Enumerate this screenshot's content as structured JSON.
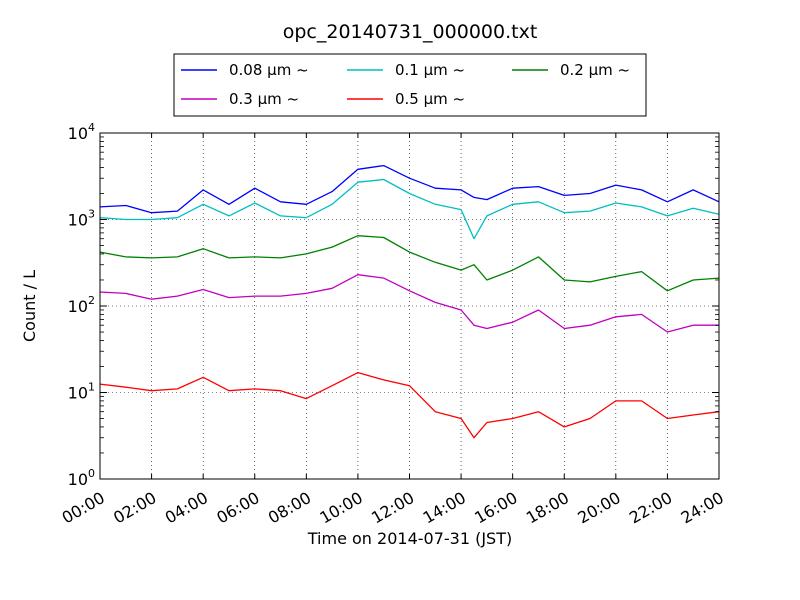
{
  "chart_data": {
    "type": "line",
    "title": "opc_20140731_000000.txt",
    "xlabel": "Time on 2014-07-31 (JST)",
    "ylabel": "Count / L",
    "y_scale": "log",
    "grid": true,
    "legend_placement": "top-center",
    "xlim": [
      "00:00",
      "24:00"
    ],
    "ylim": [
      1,
      10000
    ],
    "x_ticks": [
      "00:00",
      "02:00",
      "04:00",
      "06:00",
      "08:00",
      "10:00",
      "12:00",
      "14:00",
      "16:00",
      "18:00",
      "20:00",
      "22:00",
      "24:00"
    ],
    "y_ticks": [
      {
        "base": "10",
        "exp": "0",
        "value": 1
      },
      {
        "base": "10",
        "exp": "1",
        "value": 10
      },
      {
        "base": "10",
        "exp": "2",
        "value": 100
      },
      {
        "base": "10",
        "exp": "3",
        "value": 1000
      },
      {
        "base": "10",
        "exp": "4",
        "value": 10000
      }
    ],
    "x": [
      "00:00",
      "01:00",
      "02:00",
      "03:00",
      "04:00",
      "05:00",
      "06:00",
      "07:00",
      "08:00",
      "09:00",
      "10:00",
      "11:00",
      "12:00",
      "13:00",
      "14:00",
      "14:30",
      "15:00",
      "16:00",
      "17:00",
      "18:00",
      "19:00",
      "20:00",
      "21:00",
      "22:00",
      "23:00",
      "24:00"
    ],
    "series": [
      {
        "name": "0.08 μm ~",
        "color": "#0000ff",
        "values": [
          1400,
          1450,
          1200,
          1250,
          2200,
          1500,
          2300,
          1600,
          1500,
          2100,
          3800,
          4200,
          3000,
          2300,
          2200,
          1800,
          1700,
          2300,
          2400,
          1900,
          2000,
          2500,
          2200,
          1600,
          2200,
          1600
        ]
      },
      {
        "name": "0.1 μm ~",
        "color": "#00bfbf",
        "values": [
          1050,
          1000,
          1000,
          1050,
          1500,
          1100,
          1550,
          1100,
          1050,
          1500,
          2700,
          2900,
          2000,
          1500,
          1300,
          600,
          1100,
          1500,
          1600,
          1200,
          1250,
          1550,
          1400,
          1100,
          1350,
          1150
        ]
      },
      {
        "name": "0.2 μm ~",
        "color": "#008000",
        "values": [
          420,
          370,
          360,
          370,
          460,
          360,
          370,
          360,
          400,
          480,
          650,
          620,
          420,
          320,
          260,
          300,
          200,
          260,
          370,
          200,
          190,
          220,
          250,
          150,
          200,
          210
        ]
      },
      {
        "name": "0.3 μm ~",
        "color": "#bf00bf",
        "values": [
          145,
          140,
          120,
          130,
          155,
          125,
          130,
          130,
          140,
          160,
          230,
          210,
          150,
          110,
          90,
          60,
          55,
          65,
          90,
          55,
          60,
          75,
          80,
          50,
          60,
          60
        ]
      },
      {
        "name": "0.5 μm ~",
        "color": "#ff0000",
        "values": [
          12.5,
          11.5,
          10.5,
          11,
          15,
          10.5,
          11,
          10.5,
          8.5,
          12,
          17,
          14,
          12,
          6,
          5,
          3,
          4.5,
          5,
          6,
          4,
          5,
          8,
          8,
          5,
          5.5,
          6
        ]
      }
    ]
  }
}
